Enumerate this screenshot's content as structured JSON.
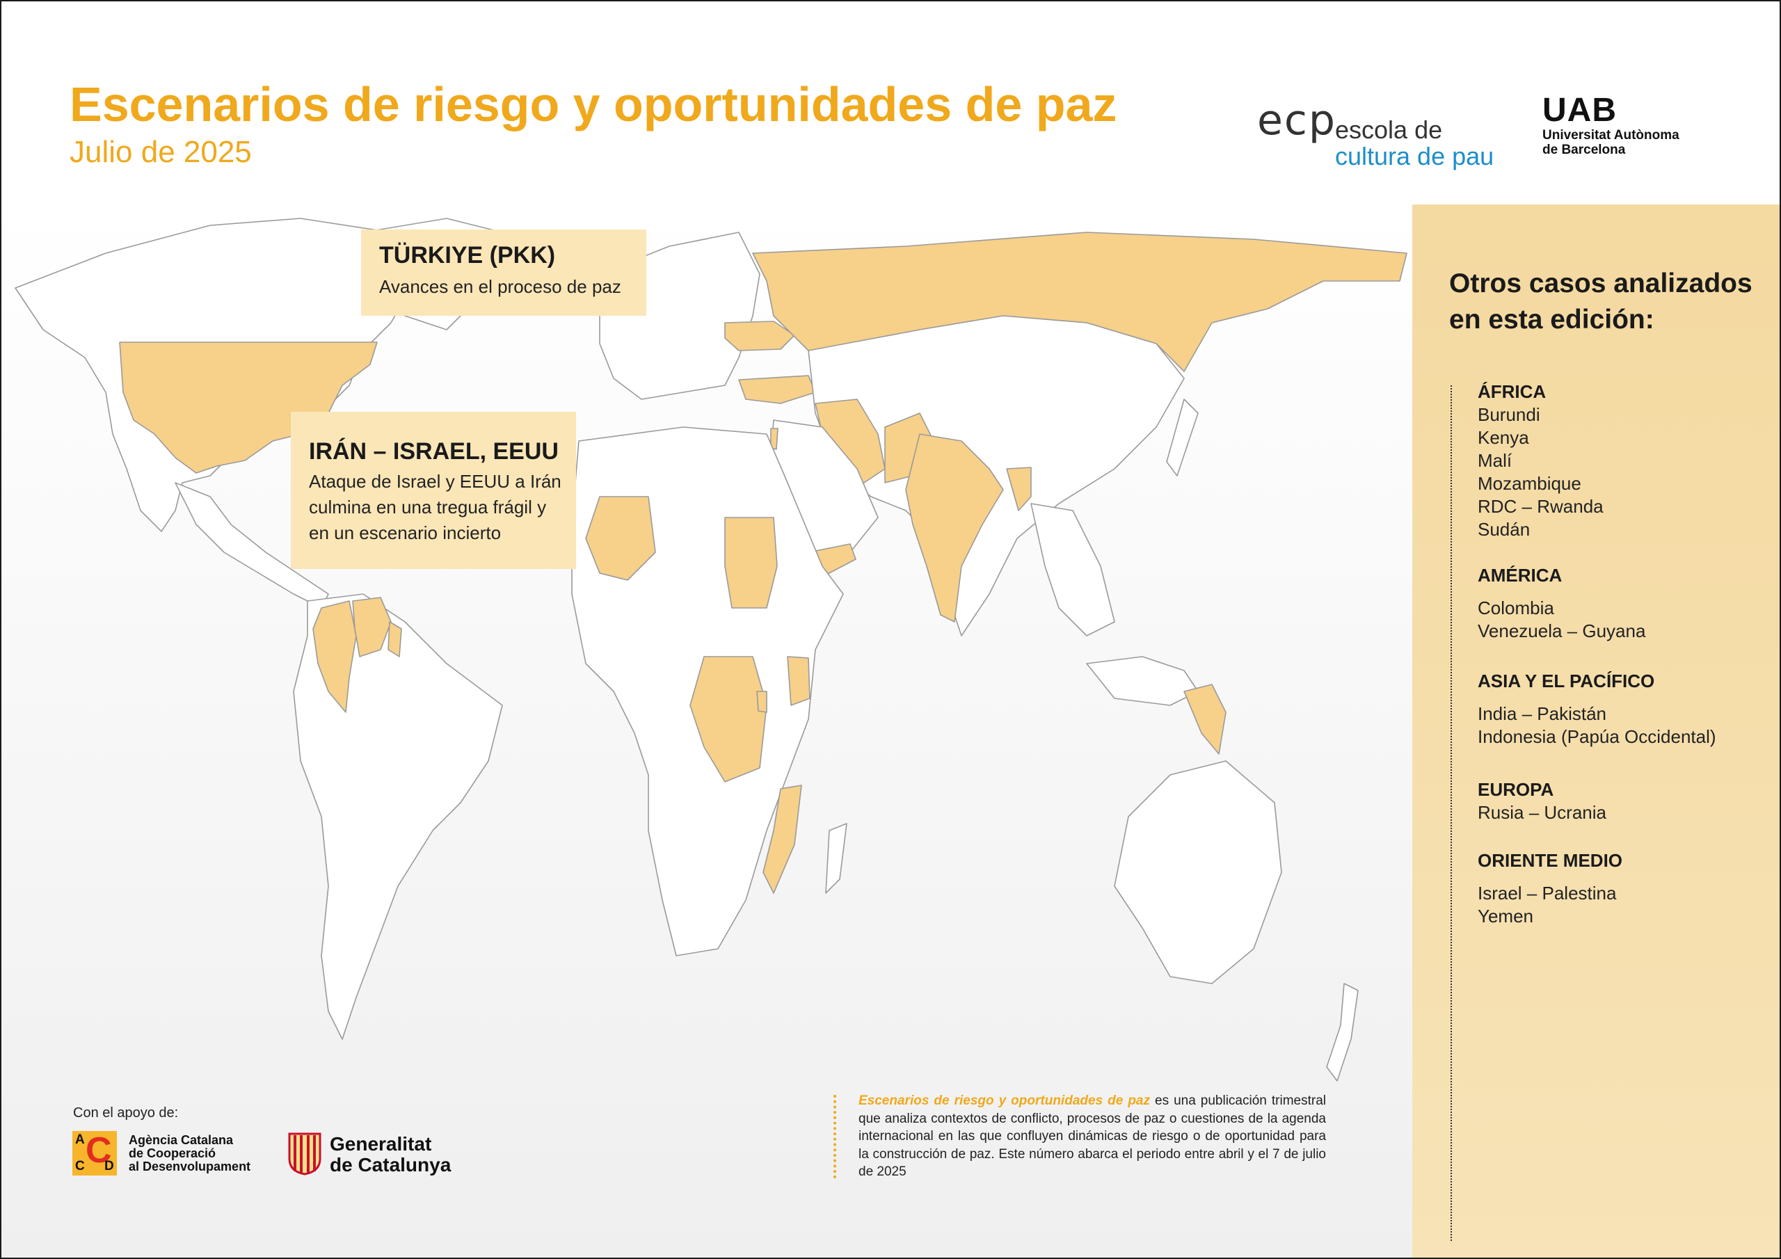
{
  "header": {
    "title": "Escenarios de riesgo y oportunidades de paz",
    "subtitle": "Julio de 2025"
  },
  "logos": {
    "ecp": {
      "mark": "ecp",
      "line1": "escola de",
      "line2": "cultura de pau"
    },
    "uab": {
      "mark": "UAB",
      "line1": "Universitat Autònoma",
      "line2": "de Barcelona"
    },
    "accd": {
      "letters": [
        "A",
        "C",
        "C",
        "D"
      ],
      "text": "Agència Catalana\nde Cooperació\nal Desenvolupament"
    },
    "generalitat": {
      "text": "Generalitat\nde Catalunya"
    }
  },
  "map": {
    "highlight_color": "#f7d08a",
    "land_color": "#ffffff",
    "border_color": "#9a9a9a",
    "highlighted_countries": [
      "Estados Unidos",
      "Rusia",
      "Ucrania",
      "Türkiye",
      "Irán",
      "Israel",
      "Palestina",
      "Pakistán",
      "India",
      "Yemen",
      "Malí",
      "Sudán",
      "Kenya",
      "Burundi",
      "RDC",
      "Rwanda",
      "Mozambique",
      "Colombia",
      "Venezuela",
      "Guyana",
      "Indonesia (Papúa Occidental)",
      "Myanmar"
    ],
    "callouts": [
      {
        "title": "TÜRKIYE (PKK)",
        "body": "Avances en el proceso de paz"
      },
      {
        "title": "IRÁN – ISRAEL, EEUU",
        "body": "Ataque de Israel y EEUU a Irán\nculmina en una tregua frágil y\nen un escenario incierto"
      }
    ]
  },
  "footer": {
    "support_label": "Con el apoyo de:",
    "about_emphasis": "Escenarios de riesgo y oportunidades de paz",
    "about_text": " es una publicación trimestral que analiza contextos de conflicto, procesos de paz o cuestiones de la agenda internacional en las que confluyen dinámicas de riesgo o de oportunidad para la construcción de paz. Este número abarca el periodo entre abril y el 7 de julio de 2025"
  },
  "sidebar": {
    "title": "Otros casos analizados\nen esta edición:",
    "regions": [
      {
        "name": "ÁFRICA",
        "cases": [
          "Burundi",
          "Kenya",
          "Malí",
          "Mozambique",
          "RDC – Rwanda",
          "Sudán"
        ]
      },
      {
        "name": "AMÉRICA",
        "cases": [
          "Colombia",
          "Venezuela – Guyana"
        ]
      },
      {
        "name": "ASIA Y EL PACÍFICO",
        "cases": [
          "India – Pakistán",
          "Indonesia (Papúa Occidental)"
        ]
      },
      {
        "name": "EUROPA",
        "cases": [
          "Rusia – Ucrania"
        ]
      },
      {
        "name": "ORIENTE MEDIO",
        "cases": [
          "Israel – Palestina",
          "Yemen"
        ]
      }
    ]
  }
}
